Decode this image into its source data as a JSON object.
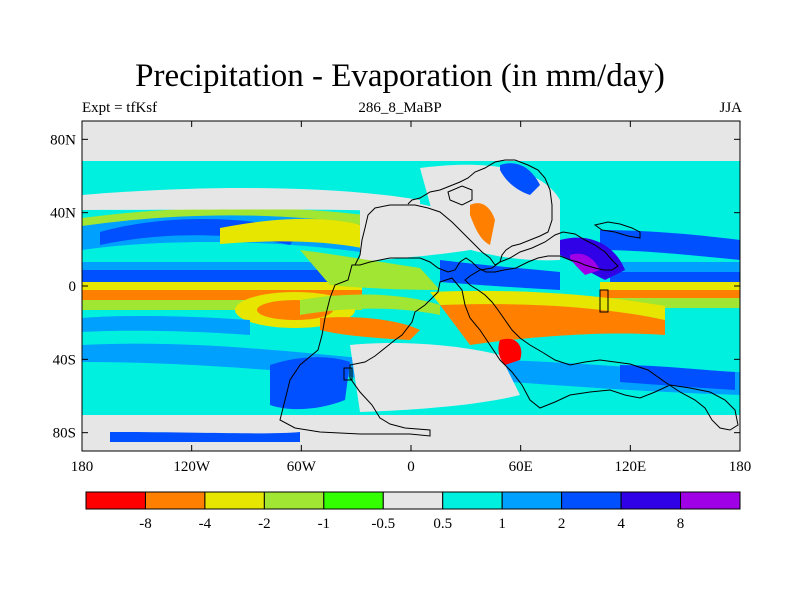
{
  "header": {
    "title": "Precipitation - Evaporation (in mm/day)",
    "left_label": "Expt = tfKsf",
    "center_label": "286_8_MaBP",
    "right_label": "JJA"
  },
  "axes": {
    "lat_ticks": [
      {
        "label": "80N",
        "lat": 80
      },
      {
        "label": "40N",
        "lat": 40
      },
      {
        "label": "0",
        "lat": 0
      },
      {
        "label": "40S",
        "lat": -40
      },
      {
        "label": "80S",
        "lat": -80
      }
    ],
    "lon_ticks": [
      {
        "label": "180",
        "lon": -180
      },
      {
        "label": "120W",
        "lon": -120
      },
      {
        "label": "60W",
        "lon": -60
      },
      {
        "label": "0",
        "lon": 0
      },
      {
        "label": "60E",
        "lon": 60
      },
      {
        "label": "120E",
        "lon": 120
      },
      {
        "label": "180",
        "lon": 180
      }
    ]
  },
  "colorbar": {
    "colors": [
      "#ff0000",
      "#ff8000",
      "#e6e600",
      "#a0e632",
      "#33ff00",
      "#e6e6e6",
      "#00f0e0",
      "#00a0ff",
      "#0050ff",
      "#3000e6",
      "#a000e6"
    ],
    "labels": [
      "-8",
      "-4",
      "-2",
      "-1",
      "-0.5",
      "0.5",
      "1",
      "2",
      "4",
      "8"
    ]
  },
  "colors": {
    "land": "#e6e6e6",
    "ocean_background": "#00f0e0"
  }
}
